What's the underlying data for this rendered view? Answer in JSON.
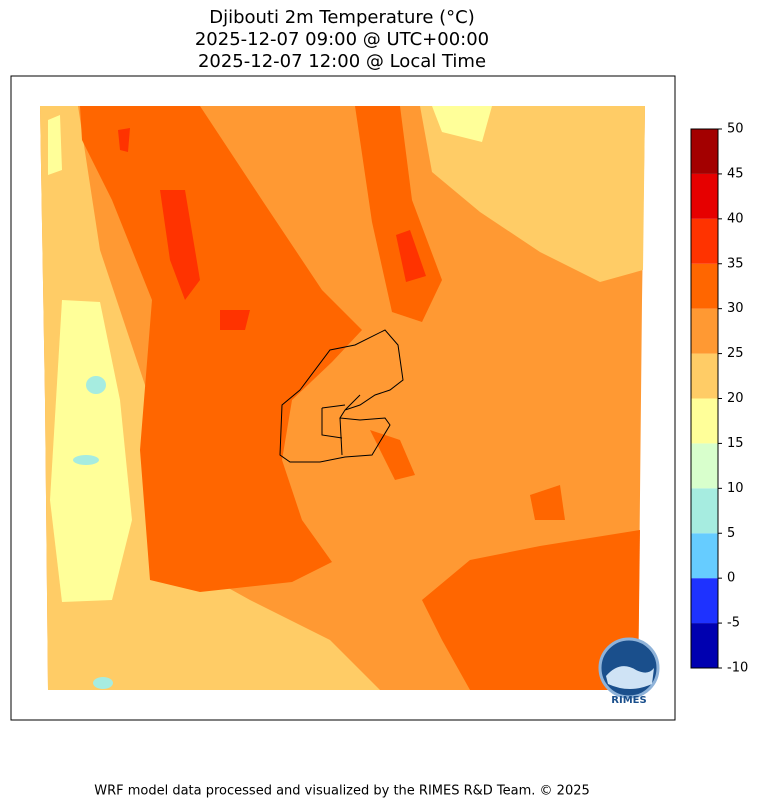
{
  "title": [
    "Djibouti 2m Temperature (°C)",
    "2025-12-07 09:00 @ UTC+00:00",
    "2025-12-07 12:00 @ Local Time"
  ],
  "colorbar": {
    "levels": [
      -10,
      -5,
      0,
      5,
      10,
      15,
      20,
      25,
      30,
      35,
      40,
      45,
      50
    ],
    "colors": [
      "#0000b0",
      "#1e32ff",
      "#66ccff",
      "#a6ece0",
      "#d8ffcc",
      "#ffff99",
      "#ffcc66",
      "#ff9933",
      "#ff6600",
      "#ff3300",
      "#e60000",
      "#a30000"
    ]
  },
  "logo": "RIMES",
  "footer": "WRF model data processed and visualized by the RIMES R&D Team. © 2025"
}
